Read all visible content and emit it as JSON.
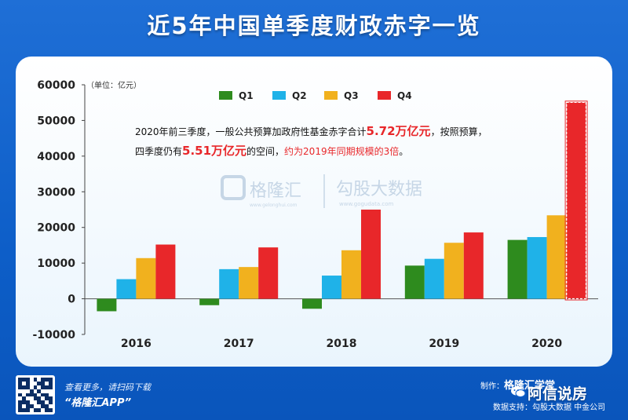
{
  "page": {
    "title": "近5年中国单季度财政赤字一览"
  },
  "chart_data": {
    "type": "bar",
    "unit_label": "（单位：亿元）",
    "categories": [
      "2016",
      "2017",
      "2018",
      "2019",
      "2020"
    ],
    "series": [
      {
        "name": "Q1",
        "color": "#2e8b1e",
        "values": [
          -3500,
          -1800,
          -2800,
          9300,
          16500
        ]
      },
      {
        "name": "Q2",
        "color": "#1fb2e8",
        "values": [
          5500,
          8300,
          6500,
          11200,
          17300
        ]
      },
      {
        "name": "Q3",
        "color": "#f1b11e",
        "values": [
          11400,
          8900,
          13600,
          15700,
          23400
        ]
      },
      {
        "name": "Q4",
        "color": "#e8272a",
        "values": [
          15200,
          14400,
          25000,
          18600,
          55100
        ]
      }
    ],
    "ylim": [
      -10000,
      60000
    ],
    "yticks": [
      "60000",
      "50000",
      "40000",
      "30000",
      "20000",
      "10000",
      "0",
      "-10000"
    ],
    "ytick_values": [
      60000,
      50000,
      40000,
      30000,
      20000,
      10000,
      0,
      -10000
    ],
    "legend_position": "top",
    "grid": false,
    "projected_bar": "2020 Q4",
    "annotation": {
      "line1_a": "2020年前三季度，一般公共预算加政府性基金赤字合计",
      "line1_b": "5.72万亿元",
      "line1_c": "，按照预算，",
      "line2_a": "四季度仍有",
      "line2_b": "5.51万亿元",
      "line2_c": "的空间，",
      "line2_d": "约为2019年同期规模的3倍",
      "line2_e": "。"
    }
  },
  "watermark": {
    "left_name": "格隆汇",
    "left_url": "www.gelonghui.com",
    "right_name": "勾股大数据",
    "right_url": "www.gogudata.com"
  },
  "footer": {
    "scan_line": "查看更多，请扫码下载",
    "app_name": "“格隆汇APP”",
    "maker_prefix": "制作：",
    "maker": "格隆汇学堂",
    "data_support": "数据支持：勾股大数据  中金公司",
    "wechat_account": "阿信说房"
  },
  "colors": {
    "background": "#1565d0",
    "panel": "#ffffff",
    "highlight": "#e8272a"
  }
}
